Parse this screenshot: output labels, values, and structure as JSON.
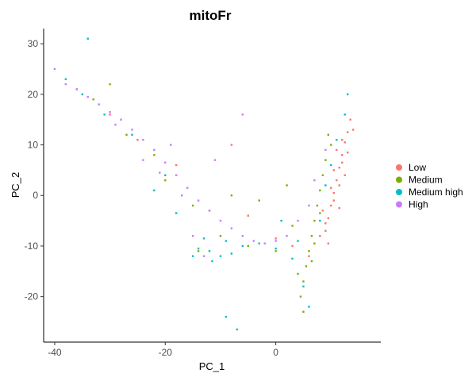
{
  "chart_data": {
    "type": "scatter",
    "title": "mitoFr",
    "xlabel": "PC_1",
    "ylabel": "PC_2",
    "xlim": [
      -42,
      19
    ],
    "ylim": [
      -29,
      33
    ],
    "xticks": [
      -40,
      -20,
      0
    ],
    "yticks": [
      -20,
      -10,
      0,
      10,
      20,
      30
    ],
    "grid": false,
    "legend_position": "right",
    "series": [
      {
        "name": "Low",
        "color": "#F8766D",
        "values": [
          [
            13.0,
            12.5
          ],
          [
            12.5,
            10.5
          ],
          [
            12.0,
            8.0
          ],
          [
            11.5,
            5.5
          ],
          [
            11.0,
            3.0
          ],
          [
            10.5,
            0.5
          ],
          [
            10.0,
            -2.0
          ],
          [
            9.5,
            -4.5
          ],
          [
            9.0,
            -7.0
          ],
          [
            13.5,
            15.0
          ],
          [
            12.0,
            6.5
          ],
          [
            11.5,
            2.0
          ],
          [
            10.5,
            -1.0
          ],
          [
            9.0,
            -5.5
          ],
          [
            14.0,
            13.0
          ],
          [
            11.0,
            9.0
          ],
          [
            12.5,
            4.0
          ],
          [
            10.0,
            1.5
          ],
          [
            8.5,
            -3.0
          ],
          [
            13.0,
            8.5
          ],
          [
            11.5,
            -2.5
          ],
          [
            9.5,
            -9.5
          ],
          [
            12.0,
            11.0
          ],
          [
            10.5,
            5.0
          ],
          [
            8.0,
            -8.0
          ],
          [
            -5.0,
            -4.0
          ],
          [
            -12.0,
            -3.0
          ],
          [
            -18.0,
            6.0
          ],
          [
            -25.0,
            11.0
          ],
          [
            -30.0,
            16.0
          ],
          [
            -8.0,
            10.0
          ],
          [
            3.0,
            -10.0
          ],
          [
            0.0,
            -8.5
          ],
          [
            6.0,
            -12.0
          ]
        ]
      },
      {
        "name": "Medium",
        "color": "#7CAE00",
        "values": [
          [
            8.5,
            4.0
          ],
          [
            9.0,
            7.0
          ],
          [
            8.0,
            1.0
          ],
          [
            7.5,
            -2.0
          ],
          [
            7.0,
            -5.0
          ],
          [
            6.5,
            -8.0
          ],
          [
            6.0,
            -11.0
          ],
          [
            5.5,
            -14.0
          ],
          [
            5.0,
            -17.0
          ],
          [
            10.0,
            10.0
          ],
          [
            8.0,
            -3.5
          ],
          [
            6.5,
            -13.0
          ],
          [
            4.5,
            -20.0
          ],
          [
            5.0,
            -23.0
          ],
          [
            9.5,
            12.0
          ],
          [
            -10.0,
            -8.0
          ],
          [
            -15.0,
            -2.0
          ],
          [
            -20.0,
            3.0
          ],
          [
            -27.0,
            12.0
          ],
          [
            -33.0,
            19.0
          ],
          [
            -5.0,
            -10.0
          ],
          [
            0.0,
            -11.0
          ],
          [
            3.0,
            -6.0
          ],
          [
            -22.0,
            8.0
          ],
          [
            -30.0,
            22.0
          ],
          [
            -8.0,
            0.0
          ],
          [
            2.0,
            2.0
          ],
          [
            -14.0,
            -11.0
          ],
          [
            7.0,
            -9.5
          ],
          [
            -3.0,
            -1.0
          ],
          [
            -36.0,
            21.0
          ],
          [
            4.0,
            -15.5
          ]
        ]
      },
      {
        "name": "Medium high",
        "color": "#00BFC4",
        "values": [
          [
            -12.0,
            -11.0
          ],
          [
            -14.0,
            -10.5
          ],
          [
            -10.0,
            -12.0
          ],
          [
            -8.0,
            -11.5
          ],
          [
            -13.0,
            -8.5
          ],
          [
            -11.5,
            -13.0
          ],
          [
            -9.0,
            -9.0
          ],
          [
            -15.0,
            -12.0
          ],
          [
            -6.0,
            -10.0
          ],
          [
            -3.0,
            -9.5
          ],
          [
            0.0,
            -10.5
          ],
          [
            3.0,
            -12.5
          ],
          [
            5.0,
            -18.0
          ],
          [
            6.0,
            -22.0
          ],
          [
            4.0,
            -9.0
          ],
          [
            -20.0,
            4.0
          ],
          [
            -26.0,
            12.0
          ],
          [
            -31.0,
            16.0
          ],
          [
            -35.0,
            20.0
          ],
          [
            -38.0,
            23.0
          ],
          [
            9.0,
            2.0
          ],
          [
            10.0,
            6.0
          ],
          [
            11.0,
            11.0
          ],
          [
            12.5,
            16.0
          ],
          [
            -34.0,
            31.0
          ],
          [
            -18.0,
            -3.5
          ],
          [
            -7.0,
            -26.5
          ],
          [
            -9.0,
            -24.0
          ],
          [
            8.0,
            -5.0
          ],
          [
            13.0,
            20.0
          ],
          [
            -22.0,
            1.0
          ],
          [
            1.0,
            -5.0
          ]
        ]
      },
      {
        "name": "High",
        "color": "#C77CFF",
        "values": [
          [
            -38.0,
            22.0
          ],
          [
            -36.0,
            21.0
          ],
          [
            -34.0,
            19.5
          ],
          [
            -32.0,
            18.0
          ],
          [
            -30.0,
            16.5
          ],
          [
            -28.0,
            15.0
          ],
          [
            -26.0,
            13.0
          ],
          [
            -24.0,
            11.0
          ],
          [
            -22.0,
            9.0
          ],
          [
            -20.0,
            6.5
          ],
          [
            -18.0,
            4.0
          ],
          [
            -16.0,
            1.5
          ],
          [
            -14.0,
            -1.0
          ],
          [
            -12.0,
            -3.0
          ],
          [
            -10.0,
            -5.0
          ],
          [
            -8.0,
            -6.5
          ],
          [
            -6.0,
            -8.0
          ],
          [
            -4.0,
            -9.0
          ],
          [
            -2.0,
            -9.5
          ],
          [
            0.0,
            -9.0
          ],
          [
            2.0,
            -8.0
          ],
          [
            4.0,
            -5.0
          ],
          [
            6.0,
            -2.0
          ],
          [
            -15.0,
            -8.0
          ],
          [
            -13.0,
            -12.0
          ],
          [
            -29.0,
            14.0
          ],
          [
            -21.0,
            4.5
          ],
          [
            -17.0,
            0.0
          ],
          [
            7.0,
            3.0
          ],
          [
            9.0,
            9.0
          ],
          [
            -11.0,
            7.0
          ],
          [
            -6.0,
            16.0
          ],
          [
            -40.0,
            25.0
          ],
          [
            -19.0,
            10.0
          ],
          [
            -24.0,
            7.0
          ]
        ]
      }
    ]
  }
}
